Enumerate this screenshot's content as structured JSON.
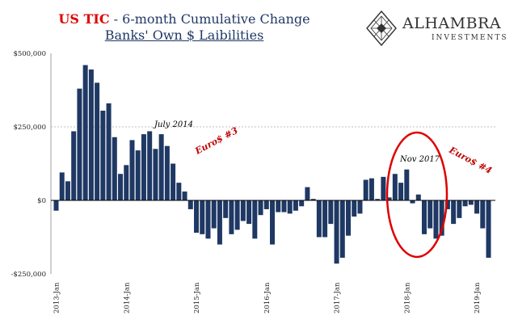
{
  "title": {
    "part1": "US TIC",
    "part2": " - 6-month Cumulative Change",
    "line2": "Banks' Own $ Laibilities"
  },
  "logo": {
    "name": "ALHAMBRA",
    "sub": "INVESTMENTS",
    "icon": "diamond-lattice-icon"
  },
  "chart_data": {
    "type": "bar",
    "title": "US TIC - 6-month Cumulative Change Banks' Own $ Laibilities",
    "xlabel": "",
    "ylabel": "",
    "ylim": [
      -250000,
      500000
    ],
    "y_ticks": [
      500000,
      250000,
      0,
      -250000
    ],
    "y_tick_labels": [
      "$500,000",
      "$250,000",
      "$0",
      "-$250,000"
    ],
    "x_tick_labels": [
      "2013-Jan",
      "2014-Jan",
      "2015-Jan",
      "2016-Jan",
      "2017-Jan",
      "2018-Jan",
      "2019-Jan"
    ],
    "x_start": "2013-01",
    "values": [
      -35000,
      95000,
      65000,
      235000,
      380000,
      460000,
      445000,
      400000,
      305000,
      330000,
      215000,
      90000,
      120000,
      205000,
      170000,
      225000,
      235000,
      175000,
      225000,
      185000,
      125000,
      60000,
      30000,
      -30000,
      -110000,
      -115000,
      -130000,
      -95000,
      -150000,
      -60000,
      -115000,
      -100000,
      -70000,
      -80000,
      -130000,
      -50000,
      -30000,
      -150000,
      -40000,
      -40000,
      -45000,
      -35000,
      -20000,
      45000,
      5000,
      -125000,
      -125000,
      -80000,
      -215000,
      -195000,
      -120000,
      -55000,
      -45000,
      70000,
      75000,
      5000,
      80000,
      10000,
      90000,
      60000,
      105000,
      -10000,
      20000,
      -115000,
      -95000,
      -130000,
      -120000,
      -30000,
      -80000,
      -60000,
      -20000,
      -15000,
      -45000,
      -95000,
      -195000
    ],
    "bar_color": "#1f3864",
    "grid": "dashed line at $250,000",
    "annotations": [
      {
        "text": "July 2014",
        "color": "#000000"
      },
      {
        "text": "Euro$ #3",
        "color": "#c00000"
      },
      {
        "text": "Nov 2017",
        "color": "#000000"
      },
      {
        "text": "Euro$ #4",
        "color": "#c00000"
      }
    ],
    "highlight": "red ellipse around Nov 2017 - Jan 2018"
  }
}
